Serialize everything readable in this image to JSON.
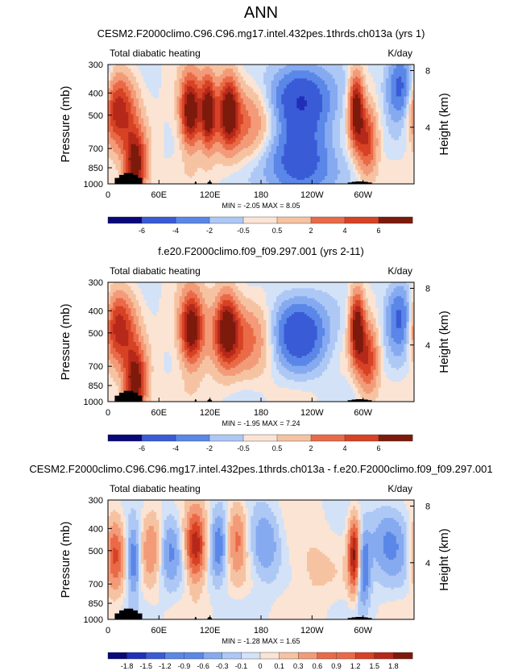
{
  "page_title": "ANN",
  "chart_data": [
    {
      "type": "heatmap",
      "title": "CESM2.F2000climo.C96.C96.mg17.intel.432pes.1thrds.ch013a (yrs 1)",
      "left_label": "Total diabatic heating",
      "right_label": "K/day",
      "ylabel": "Pressure (mb)",
      "y2label": "Height (km)",
      "x_ticks": [
        "0",
        "60E",
        "120E",
        "180",
        "120W",
        "60W"
      ],
      "x_tick_values": [
        0,
        60,
        120,
        180,
        240,
        300
      ],
      "xlim": [
        0,
        360
      ],
      "y_ticks": [
        "300",
        "400",
        "500",
        "700",
        "850",
        "1000"
      ],
      "y_tick_values": [
        300,
        400,
        500,
        700,
        850,
        1000
      ],
      "ylim": [
        300,
        1000
      ],
      "y_log": true,
      "height_ticks": [
        "8",
        "4"
      ],
      "height_tick_values": [
        8,
        4
      ],
      "minmax_text": "MIN = -2.05  MAX = 8.05",
      "min": -2.05,
      "max": 8.05,
      "colorbar_labels": [
        "-6",
        "-4",
        "-2",
        "-0.5",
        "0.5",
        "2",
        "4",
        "6"
      ],
      "features": [
        {
          "lon": 12,
          "width": 14,
          "p": 470,
          "amp": 0.8
        },
        {
          "lon": 32,
          "width": 9,
          "p": 840,
          "amp": 1.0
        },
        {
          "lon": 97,
          "width": 8,
          "p": 480,
          "amp": 1.0
        },
        {
          "lon": 118,
          "width": 6,
          "p": 480,
          "amp": 0.9
        },
        {
          "lon": 142,
          "width": 8,
          "p": 470,
          "amp": 0.8
        },
        {
          "lon": 160,
          "width": 32,
          "p": 520,
          "amp": 0.4
        },
        {
          "lon": 225,
          "width": 26,
          "p": 430,
          "amp": -0.75
        },
        {
          "lon": 225,
          "width": 28,
          "p": 820,
          "amp": -0.6
        },
        {
          "lon": 292,
          "width": 6,
          "p": 470,
          "amp": 1.0
        },
        {
          "lon": 305,
          "width": 8,
          "p": 650,
          "amp": 0.6
        },
        {
          "lon": 345,
          "width": 12,
          "p": 380,
          "amp": -0.6
        }
      ],
      "topography": [
        {
          "lon_start": 8,
          "lon_end": 40,
          "p_top": 895
        },
        {
          "lon_start": 102,
          "lon_end": 104,
          "p_top": 975
        },
        {
          "lon_start": 117,
          "lon_end": 122,
          "p_top": 975
        },
        {
          "lon_start": 282,
          "lon_end": 310,
          "p_top": 975
        }
      ]
    },
    {
      "type": "heatmap",
      "title": "f.e20.F2000climo.f09_f09.297.001 (yrs 2-11)",
      "left_label": "Total diabatic heating",
      "right_label": "K/day",
      "ylabel": "Pressure (mb)",
      "y2label": "Height (km)",
      "x_ticks": [
        "0",
        "60E",
        "120E",
        "180",
        "120W",
        "60W"
      ],
      "x_tick_values": [
        0,
        60,
        120,
        180,
        240,
        300
      ],
      "xlim": [
        0,
        360
      ],
      "y_ticks": [
        "300",
        "400",
        "500",
        "700",
        "850",
        "1000"
      ],
      "y_tick_values": [
        300,
        400,
        500,
        700,
        850,
        1000
      ],
      "ylim": [
        300,
        1000
      ],
      "y_log": true,
      "height_ticks": [
        "8",
        "4"
      ],
      "height_tick_values": [
        8,
        4
      ],
      "minmax_text": "MIN = -1.95  MAX =  7.24",
      "min": -1.95,
      "max": 7.24,
      "colorbar_labels": [
        "-6",
        "-4",
        "-2",
        "-0.5",
        "0.5",
        "2",
        "4",
        "6"
      ],
      "features": [
        {
          "lon": 12,
          "width": 14,
          "p": 470,
          "amp": 0.8
        },
        {
          "lon": 32,
          "width": 9,
          "p": 840,
          "amp": 1.0
        },
        {
          "lon": 98,
          "width": 9,
          "p": 480,
          "amp": 0.95
        },
        {
          "lon": 140,
          "width": 9,
          "p": 470,
          "amp": 0.75
        },
        {
          "lon": 160,
          "width": 34,
          "p": 520,
          "amp": 0.45
        },
        {
          "lon": 222,
          "width": 24,
          "p": 500,
          "amp": -0.75
        },
        {
          "lon": 293,
          "width": 6,
          "p": 470,
          "amp": 1.0
        },
        {
          "lon": 306,
          "width": 8,
          "p": 650,
          "amp": 0.6
        },
        {
          "lon": 345,
          "width": 12,
          "p": 430,
          "amp": -0.6
        }
      ],
      "topography": [
        {
          "lon_start": 8,
          "lon_end": 40,
          "p_top": 895
        },
        {
          "lon_start": 102,
          "lon_end": 104,
          "p_top": 975
        },
        {
          "lon_start": 117,
          "lon_end": 122,
          "p_top": 975
        },
        {
          "lon_start": 282,
          "lon_end": 310,
          "p_top": 975
        }
      ]
    },
    {
      "type": "heatmap",
      "title": "CESM2.F2000climo.C96.C96.mg17.intel.432pes.1thrds.ch013a - f.e20.F2000climo.f09_f09.297.001",
      "left_label": "Total diabatic heating",
      "right_label": "K/day",
      "ylabel": "Pressure (mb)",
      "y2label": "Height (km)",
      "x_ticks": [
        "0",
        "60E",
        "120E",
        "180",
        "120W",
        "60W"
      ],
      "x_tick_values": [
        0,
        60,
        120,
        180,
        240,
        300
      ],
      "xlim": [
        0,
        360
      ],
      "y_ticks": [
        "300",
        "400",
        "500",
        "700",
        "850",
        "1000"
      ],
      "y_tick_values": [
        300,
        400,
        500,
        700,
        850,
        1000
      ],
      "ylim": [
        300,
        1000
      ],
      "y_log": true,
      "height_ticks": [
        "8",
        "4"
      ],
      "height_tick_values": [
        8,
        4
      ],
      "minmax_text": "MIN = -1.28  MAX =  1.65",
      "min": -1.28,
      "max": 1.65,
      "colorbar_labels": [
        "-1.8",
        "-1.5",
        "-1.2",
        "-0.9",
        "-0.6",
        "-0.3",
        "-0.1",
        "0",
        "0.1",
        "0.3",
        "0.6",
        "0.9",
        "1.2",
        "1.5",
        "1.8"
      ],
      "features": [
        {
          "lon": 8,
          "width": 8,
          "p": 520,
          "amp": 0.55
        },
        {
          "lon": 30,
          "width": 6,
          "p": 560,
          "amp": -0.45
        },
        {
          "lon": 52,
          "width": 10,
          "p": 480,
          "amp": 0.35
        },
        {
          "lon": 72,
          "width": 10,
          "p": 500,
          "amp": -0.35
        },
        {
          "lon": 103,
          "width": 8,
          "p": 480,
          "amp": 0.75
        },
        {
          "lon": 130,
          "width": 7,
          "p": 480,
          "amp": -0.4
        },
        {
          "lon": 152,
          "width": 8,
          "p": 440,
          "amp": 0.4
        },
        {
          "lon": 185,
          "width": 12,
          "p": 470,
          "amp": -0.3
        },
        {
          "lon": 240,
          "width": 20,
          "p": 600,
          "amp": 0.12
        },
        {
          "lon": 290,
          "width": 5,
          "p": 520,
          "amp": 0.9
        },
        {
          "lon": 300,
          "width": 6,
          "p": 600,
          "amp": -0.5
        },
        {
          "lon": 332,
          "width": 16,
          "p": 460,
          "amp": -0.35
        }
      ],
      "topography": [
        {
          "lon_start": 8,
          "lon_end": 40,
          "p_top": 895
        },
        {
          "lon_start": 102,
          "lon_end": 104,
          "p_top": 975
        },
        {
          "lon_start": 117,
          "lon_end": 122,
          "p_top": 975
        },
        {
          "lon_start": 282,
          "lon_end": 310,
          "p_top": 975
        }
      ]
    }
  ],
  "colors": {
    "palette": [
      "#08087a",
      "#1f2fb8",
      "#3a5bd6",
      "#5a87e8",
      "#86aaf0",
      "#aec8f5",
      "#d3e2f7",
      "#fbe4d4",
      "#f6c3a2",
      "#f39b78",
      "#ea6a48",
      "#d74224",
      "#b5281a",
      "#7d1a0c"
    ],
    "topography": "#000000"
  }
}
